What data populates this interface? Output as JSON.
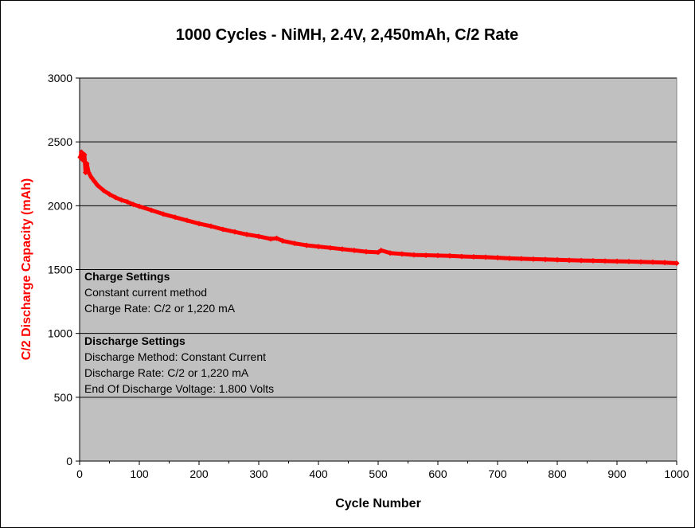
{
  "chart_data": {
    "type": "scatter",
    "title": "1000 Cycles - NiMH, 2.4V, 2,450mAh, C/2 Rate",
    "xlabel": "Cycle Number",
    "ylabel": "C/2 Discharge Capacity (mAh)",
    "xlim": [
      0,
      1000
    ],
    "ylim": [
      0,
      3000
    ],
    "x_ticks": [
      "0",
      "100",
      "200",
      "300",
      "400",
      "500",
      "600",
      "700",
      "800",
      "900",
      "1000"
    ],
    "y_ticks": [
      "0",
      "500",
      "1000",
      "1500",
      "2000",
      "2500",
      "3000"
    ],
    "grid": "horizontal",
    "legend": "none",
    "plot_background": "#c0c0c0",
    "series": [
      {
        "color": "#ff0000",
        "x": [
          1,
          3,
          5,
          8,
          10,
          12,
          15,
          20,
          25,
          30,
          40,
          50,
          60,
          70,
          80,
          90,
          100,
          120,
          140,
          160,
          180,
          200,
          220,
          240,
          260,
          280,
          300,
          320,
          330,
          340,
          360,
          380,
          400,
          420,
          440,
          460,
          480,
          500,
          505,
          520,
          540,
          560,
          580,
          600,
          620,
          640,
          660,
          680,
          700,
          720,
          740,
          760,
          780,
          800,
          820,
          840,
          860,
          880,
          900,
          920,
          940,
          960,
          980,
          1000
        ],
        "y": [
          2380,
          2420,
          2360,
          2400,
          2260,
          2330,
          2260,
          2220,
          2190,
          2160,
          2120,
          2090,
          2065,
          2045,
          2030,
          2010,
          1995,
          1965,
          1935,
          1910,
          1885,
          1860,
          1840,
          1815,
          1795,
          1775,
          1760,
          1740,
          1745,
          1725,
          1705,
          1690,
          1680,
          1670,
          1660,
          1650,
          1640,
          1635,
          1650,
          1630,
          1622,
          1615,
          1612,
          1610,
          1607,
          1603,
          1600,
          1597,
          1593,
          1588,
          1585,
          1582,
          1579,
          1576,
          1573,
          1571,
          1569,
          1567,
          1565,
          1563,
          1560,
          1558,
          1555,
          1550
        ]
      }
    ],
    "annotations": {
      "charge_heading": "Charge Settings",
      "charge_lines": [
        "Constant current method",
        "Charge Rate: C/2 or 1,220 mA"
      ],
      "discharge_heading": "Discharge Settings",
      "discharge_lines": [
        "Discharge Method: Constant Current",
        "Discharge Rate: C/2 or 1,220 mA",
        "End Of Discharge Voltage: 1.800 Volts"
      ]
    }
  }
}
